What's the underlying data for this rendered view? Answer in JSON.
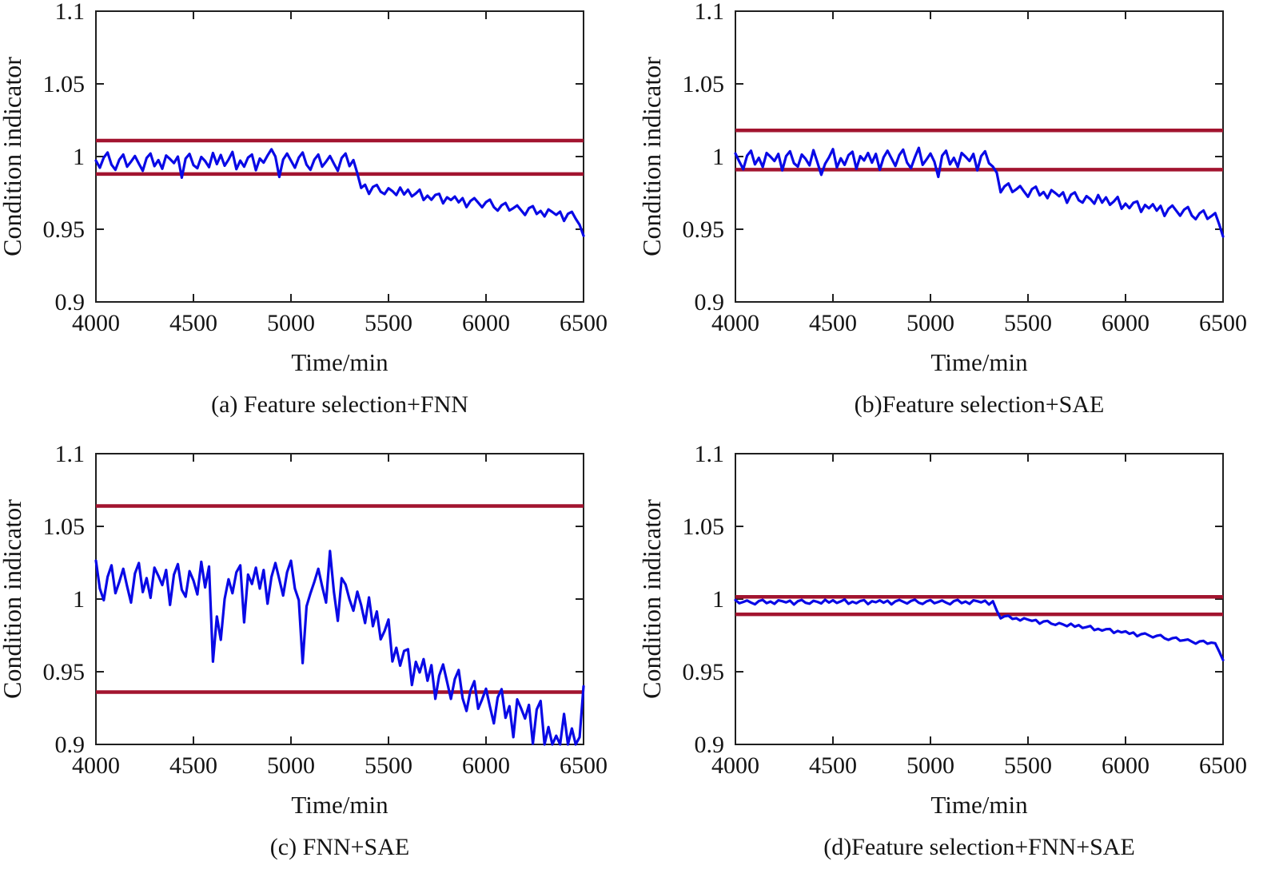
{
  "style": {
    "background": "#ffffff",
    "line_color": "#0909e6",
    "threshold_color": "#a2142f",
    "axis_color": "#1f1f1f",
    "text_color": "#141414"
  },
  "chart_data": [
    {
      "id": "a",
      "type": "line",
      "caption": "(a) Feature selection+FNN",
      "xlabel": "Time/min",
      "ylabel": "Condition indicator",
      "xlim": [
        4000,
        6500
      ],
      "ylim": [
        0.9,
        1.1
      ],
      "xticks": [
        4000,
        4500,
        5000,
        5500,
        6000,
        6500
      ],
      "xtick_labels": [
        "4000",
        "4500",
        "5000",
        "5500",
        "6000",
        "6500"
      ],
      "yticks": [
        0.9,
        0.95,
        1,
        1.05,
        1.1
      ],
      "ytick_labels": [
        "0.9",
        "0.95",
        "1",
        "1.05",
        "1.1"
      ],
      "grid": false,
      "legend": null,
      "thresholds": {
        "upper": 1.011,
        "lower": 0.988
      },
      "series": {
        "name": "condition-indicator",
        "x_start": 4000,
        "x_step": 20,
        "y": [
          0.9972,
          0.9923,
          0.9993,
          1.0028,
          0.9944,
          0.9909,
          0.9979,
          1.0014,
          0.993,
          0.9965,
          1.0004,
          0.9951,
          0.9902,
          0.999,
          1.0021,
          0.9934,
          0.9976,
          0.9916,
          1.0007,
          0.9983,
          0.9955,
          1.0,
          0.9855,
          0.9986,
          1.0018,
          0.9941,
          0.992,
          0.9997,
          0.9969,
          0.9927,
          1.0025,
          0.9948,
          1.0011,
          0.9937,
          0.9979,
          1.0032,
          0.9913,
          0.9972,
          0.993,
          0.9993,
          1.0014,
          0.9906,
          0.9986,
          0.9958,
          1.0007,
          1.005,
          1.0,
          0.986,
          0.9979,
          1.0021,
          0.9972,
          0.9923,
          0.9993,
          1.0028,
          0.9944,
          0.9909,
          0.9979,
          1.0014,
          0.993,
          0.9965,
          1.0004,
          0.9951,
          0.9902,
          0.999,
          1.0021,
          0.9934,
          0.9976,
          0.9885,
          0.9784,
          0.9806,
          0.9743,
          0.9791,
          0.9805,
          0.9758,
          0.9742,
          0.9782,
          0.9762,
          0.9735,
          0.9787,
          0.9739,
          0.9772,
          0.9726,
          0.9746,
          0.9772,
          0.9701,
          0.9731,
          0.9703,
          0.9736,
          0.9744,
          0.9678,
          0.972,
          0.9701,
          0.9725,
          0.9685,
          0.9714,
          0.9652,
          0.9694,
          0.9714,
          0.9683,
          0.9651,
          0.9687,
          0.9704,
          0.9652,
          0.9628,
          0.9665,
          0.9681,
          0.9629,
          0.9645,
          0.9664,
          0.963,
          0.9598,
          0.9645,
          0.9659,
          0.9605,
          0.9626,
          0.9588,
          0.9636,
          0.9618,
          0.9599,
          0.9621,
          0.9557,
          0.9606,
          0.962,
          0.9572,
          0.953,
          0.9455
        ]
      }
    },
    {
      "id": "b",
      "type": "line",
      "caption": "(b)Feature selection+SAE",
      "xlabel": "Time/min",
      "ylabel": "Condition indicator",
      "xlim": [
        4000,
        6500
      ],
      "ylim": [
        0.9,
        1.1
      ],
      "xticks": [
        4000,
        4500,
        5000,
        5500,
        6000,
        6500
      ],
      "xtick_labels": [
        "4000",
        "4500",
        "5000",
        "5500",
        "6000",
        "6500"
      ],
      "yticks": [
        0.9,
        0.95,
        1,
        1.05,
        1.1
      ],
      "ytick_labels": [
        "0.9",
        "0.95",
        "1",
        "1.05",
        "1.1"
      ],
      "grid": false,
      "legend": null,
      "thresholds": {
        "upper": 1.018,
        "lower": 0.991
      },
      "series": {
        "name": "condition-indicator",
        "x_start": 4000,
        "x_step": 20,
        "y": [
          1.0021,
          0.9965,
          0.9913,
          1.0006,
          1.004,
          0.9946,
          0.9991,
          0.9928,
          1.0025,
          0.9999,
          0.9969,
          1.0018,
          0.9905,
          1.0003,
          1.0036,
          0.9954,
          0.9931,
          1.0014,
          0.9984,
          0.9939,
          1.0044,
          0.9961,
          0.9875,
          0.995,
          0.9995,
          1.0051,
          0.9924,
          0.9988,
          0.9943,
          1.001,
          1.0033,
          0.9916,
          1.0003,
          0.9973,
          1.0025,
          0.9958,
          1.0018,
          0.9909,
          0.9995,
          1.004,
          0.9988,
          0.9935,
          1.001,
          1.0048,
          0.9958,
          0.992,
          0.9995,
          1.006,
          0.9943,
          0.998,
          1.0021,
          0.9965,
          0.986,
          1.0006,
          1.004,
          0.9946,
          0.9991,
          0.9928,
          1.0025,
          0.9999,
          0.9969,
          1.0018,
          0.9905,
          1.0003,
          1.0036,
          0.9954,
          0.9931,
          0.9888,
          0.9754,
          0.9795,
          0.9815,
          0.9756,
          0.9775,
          0.9797,
          0.9759,
          0.9723,
          0.9776,
          0.9793,
          0.9733,
          0.9756,
          0.9714,
          0.9769,
          0.9749,
          0.9727,
          0.9754,
          0.9682,
          0.9737,
          0.9754,
          0.97,
          0.9683,
          0.9728,
          0.9707,
          0.9676,
          0.9735,
          0.9683,
          0.9719,
          0.9668,
          0.9691,
          0.9722,
          0.9641,
          0.9676,
          0.9645,
          0.9682,
          0.9692,
          0.9619,
          0.9667,
          0.9644,
          0.9672,
          0.9628,
          0.9661,
          0.9591,
          0.964,
          0.9663,
          0.9628,
          0.9593,
          0.9634,
          0.9653,
          0.9594,
          0.9569,
          0.961,
          0.9629,
          0.9571,
          0.959,
          0.9611,
          0.9535,
          0.945
        ]
      }
    },
    {
      "id": "c",
      "type": "line",
      "caption": "(c) FNN+SAE",
      "xlabel": "Time/min",
      "ylabel": "Condition indicator",
      "xlim": [
        4000,
        6500
      ],
      "ylim": [
        0.9,
        1.1
      ],
      "xticks": [
        4000,
        4500,
        5000,
        5500,
        6000,
        6500
      ],
      "xtick_labels": [
        "4000",
        "4500",
        "5000",
        "5500",
        "6000",
        "6500"
      ],
      "yticks": [
        0.9,
        0.95,
        1,
        1.05,
        1.1
      ],
      "ytick_labels": [
        "0.9",
        "0.95",
        "1",
        "1.05",
        "1.1"
      ],
      "grid": false,
      "legend": null,
      "thresholds": {
        "upper": 1.064,
        "lower": 0.936
      },
      "series": {
        "name": "condition-indicator",
        "x_start": 4000,
        "x_step": 20,
        "y": [
          1.0264,
          1.0072,
          0.9992,
          1.0152,
          1.0232,
          1.004,
          1.012,
          1.0208,
          1.0088,
          0.9976,
          1.0176,
          1.0248,
          1.0048,
          1.0144,
          1.0008,
          1.0216,
          1.016,
          1.0096,
          1.02,
          0.996,
          1.0168,
          1.024,
          1.0064,
          1.0016,
          1.0192,
          1.0128,
          1.0032,
          1.0256,
          1.008,
          1.0224,
          0.957,
          0.988,
          0.972,
          1.0,
          1.0136,
          1.004,
          1.0184,
          1.0232,
          0.984,
          1.0168,
          1.0104,
          1.0216,
          1.0072,
          1.02,
          0.9968,
          1.0152,
          1.0248,
          1.0136,
          1.0024,
          1.0184,
          1.0264,
          1.0072,
          0.9992,
          0.956,
          0.995,
          1.004,
          1.012,
          1.0208,
          1.0088,
          0.9976,
          1.033,
          1.005,
          0.985,
          1.0144,
          1.01,
          0.9998,
          0.992,
          1.0051,
          0.9958,
          0.9835,
          1.0011,
          0.9813,
          0.9915,
          0.9723,
          0.978,
          0.9859,
          0.9571,
          0.9665,
          0.9542,
          0.9643,
          0.9655,
          0.9409,
          0.9568,
          0.9495,
          0.9587,
          0.9438,
          0.9545,
          0.9314,
          0.9473,
          0.955,
          0.9432,
          0.9313,
          0.945,
          0.9512,
          0.9318,
          0.923,
          0.937,
          0.9435,
          0.9245,
          0.931,
          0.9383,
          0.926,
          0.9145,
          0.9323,
          0.938,
          0.9183,
          0.9263,
          0.905,
          0.931,
          0.9248,
          0.9178,
          0.9272,
          0.9005,
          0.924,
          0.9299,
          0.9,
          0.912,
          0.9,
          0.906,
          0.9,
          0.921,
          0.9,
          0.911,
          0.9,
          0.905,
          0.94
        ]
      }
    },
    {
      "id": "d",
      "type": "line",
      "caption": "(d)Feature selection+FNN+SAE",
      "xlabel": "Time/min",
      "ylabel": "Condition indicator",
      "xlim": [
        4000,
        6500
      ],
      "ylim": [
        0.9,
        1.1
      ],
      "xticks": [
        4000,
        4500,
        5000,
        5500,
        6000,
        6500
      ],
      "xtick_labels": [
        "4000",
        "4500",
        "5000",
        "5500",
        "6000",
        "6500"
      ],
      "yticks": [
        0.9,
        0.95,
        1,
        1.05,
        1.1
      ],
      "ytick_labels": [
        "0.9",
        "0.95",
        "1",
        "1.05",
        "1.1"
      ],
      "grid": false,
      "legend": null,
      "thresholds": {
        "upper": 1.0015,
        "lower": 0.9895
      },
      "series": {
        "name": "condition-indicator",
        "x_start": 4000,
        "x_step": 20,
        "y": [
          0.9993,
          0.9971,
          0.998,
          0.999,
          0.9976,
          0.9964,
          0.9986,
          0.9994,
          0.9972,
          0.9983,
          0.9967,
          0.9991,
          0.9985,
          0.9977,
          0.9989,
          0.9962,
          0.9985,
          0.9994,
          0.9974,
          0.9968,
          0.9988,
          0.9981,
          0.997,
          0.9995,
          0.9976,
          0.9992,
          0.9973,
          0.9984,
          0.9997,
          0.9967,
          0.9982,
          0.9971,
          0.9987,
          0.9993,
          0.9965,
          0.9985,
          0.9978,
          0.9991,
          0.9975,
          0.9989,
          0.9963,
          0.9984,
          0.9994,
          0.9982,
          0.9969,
          0.9987,
          0.9996,
          0.9975,
          0.9966,
          0.9984,
          0.9993,
          0.9971,
          0.998,
          0.999,
          0.9976,
          0.9964,
          0.9986,
          0.9994,
          0.9972,
          0.9983,
          0.9967,
          0.9991,
          0.9985,
          0.9977,
          0.9989,
          0.9962,
          0.9985,
          0.992,
          0.9867,
          0.9882,
          0.9885,
          0.9863,
          0.9868,
          0.9852,
          0.9868,
          0.9859,
          0.985,
          0.9856,
          0.983,
          0.9846,
          0.985,
          0.983,
          0.9822,
          0.9835,
          0.9825,
          0.9813,
          0.983,
          0.981,
          0.9821,
          0.9801,
          0.9807,
          0.9815,
          0.9786,
          0.9795,
          0.9783,
          0.9793,
          0.9794,
          0.9767,
          0.9781,
          0.9771,
          0.9778,
          0.9761,
          0.977,
          0.9744,
          0.9758,
          0.9764,
          0.975,
          0.9736,
          0.9747,
          0.9752,
          0.973,
          0.9719,
          0.9731,
          0.9735,
          0.9713,
          0.9717,
          0.9722,
          0.9707,
          0.9693,
          0.9709,
          0.9712,
          0.9693,
          0.97,
          0.9696,
          0.964,
          0.958
        ]
      }
    }
  ]
}
